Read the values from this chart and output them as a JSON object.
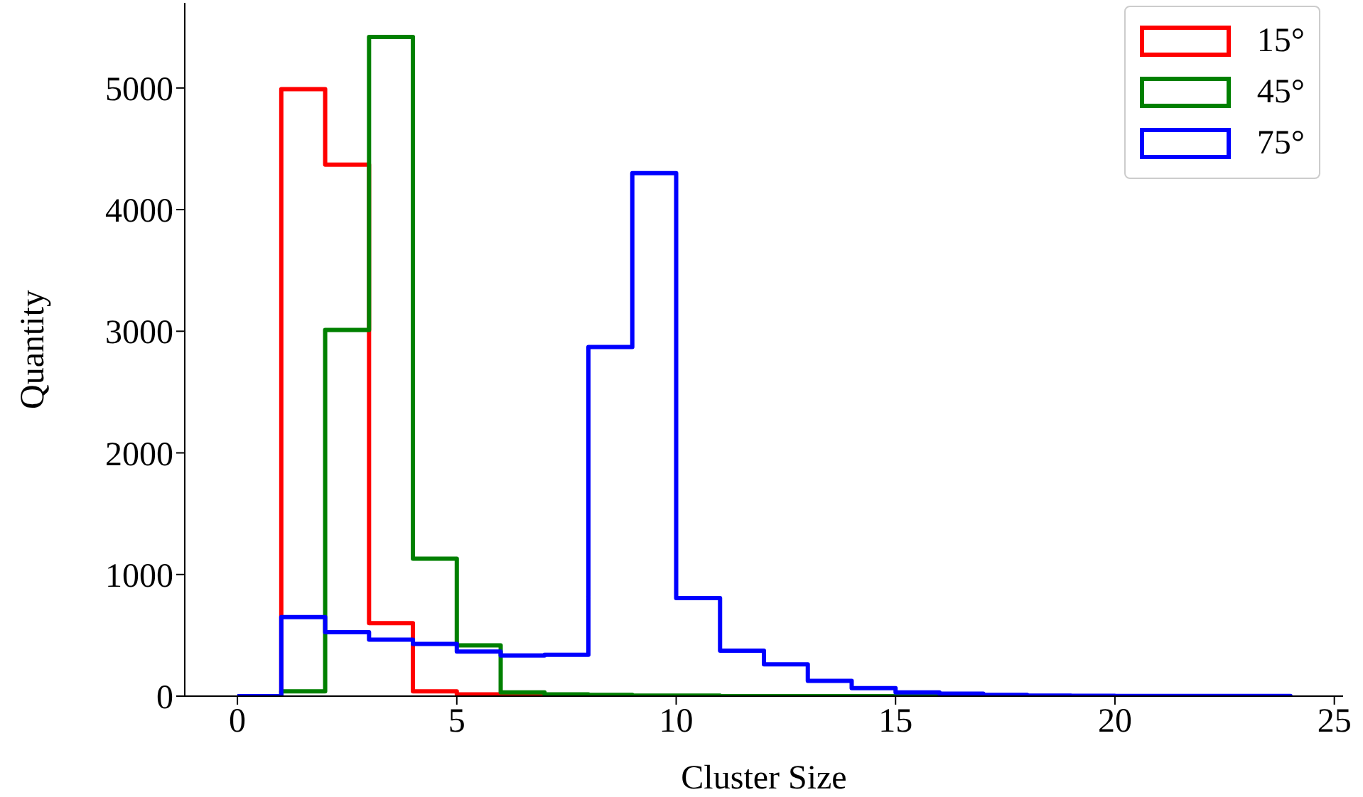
{
  "chart_data": {
    "type": "histogram",
    "xlabel": "Cluster Size",
    "ylabel": "Quantity",
    "bins": [
      0,
      1,
      2,
      3,
      4,
      5,
      6,
      7,
      8,
      9,
      10,
      11,
      12,
      13,
      14,
      15,
      16,
      17,
      18,
      19,
      20,
      21,
      22,
      23,
      24
    ],
    "series": [
      {
        "name": "15°",
        "color": "#ff0000",
        "values": [
          0,
          4990,
          4370,
          600,
          40,
          15,
          0,
          0,
          0,
          0,
          0,
          0,
          0,
          0,
          0,
          0,
          0,
          0,
          0,
          0,
          0,
          0,
          0,
          0
        ]
      },
      {
        "name": "45°",
        "color": "#008000",
        "values": [
          0,
          40,
          3010,
          5420,
          1130,
          417,
          30,
          15,
          10,
          5,
          5,
          0,
          0,
          0,
          0,
          0,
          0,
          0,
          0,
          0,
          0,
          0,
          0,
          0
        ]
      },
      {
        "name": "75°",
        "color": "#0000ff",
        "values": [
          0,
          650,
          526,
          464,
          429,
          366,
          335,
          340,
          2870,
          4300,
          806,
          374,
          261,
          125,
          66,
          31,
          20,
          10,
          5,
          3,
          2,
          2,
          2,
          2
        ]
      }
    ],
    "xlim": [
      -1.2,
      25.2
    ],
    "xticks": [
      0,
      5,
      10,
      15,
      20,
      25
    ],
    "ylim": [
      0,
      5700
    ],
    "yticks": [
      0,
      1000,
      2000,
      3000,
      4000,
      5000
    ],
    "grid": false,
    "legend": "top right"
  }
}
